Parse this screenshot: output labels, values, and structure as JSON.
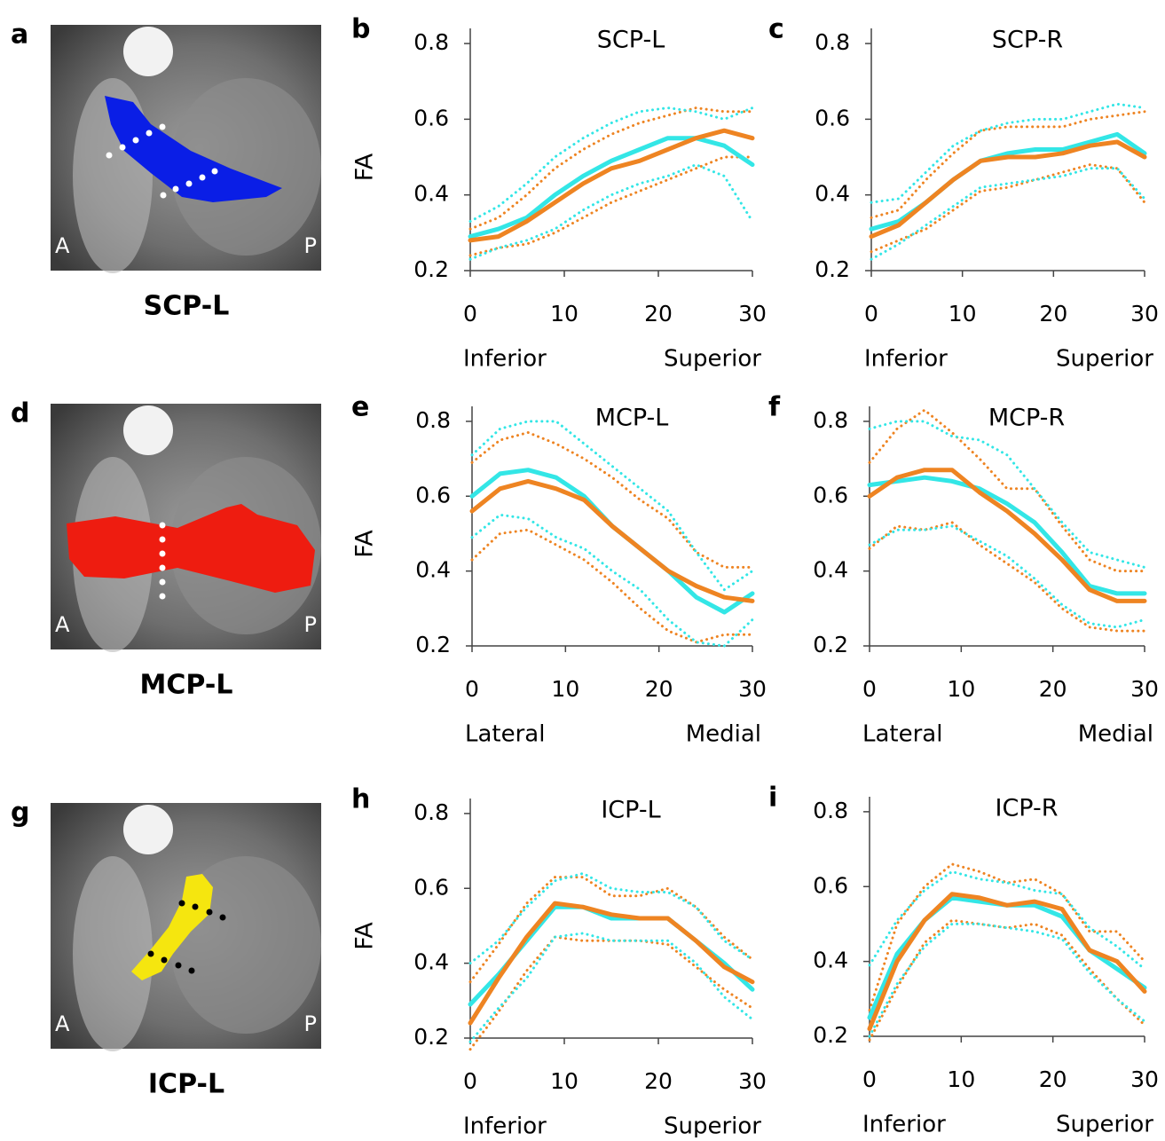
{
  "chart_data": [
    {
      "type": "line",
      "panel_label": "b",
      "title": "SCP-L",
      "ylabel": "FA",
      "x_start_label": "Inferior",
      "x_end_label": "Superior",
      "x": [
        0,
        3,
        6,
        9,
        12,
        15,
        18,
        21,
        24,
        27,
        30
      ],
      "xlim": [
        0,
        30
      ],
      "xticks": [
        0,
        10,
        20,
        30
      ],
      "ylim": [
        0.2,
        0.84
      ],
      "yticks": [
        0.2,
        0.4,
        0.6,
        0.8
      ],
      "series": [
        {
          "color": "#ee8422",
          "style": "dotted",
          "values": [
            0.31,
            0.34,
            0.4,
            0.47,
            0.52,
            0.56,
            0.59,
            0.61,
            0.63,
            0.62,
            0.62
          ]
        },
        {
          "color": "#ee8422",
          "style": "dotted",
          "values": [
            0.24,
            0.26,
            0.27,
            0.3,
            0.34,
            0.38,
            0.41,
            0.44,
            0.47,
            0.5,
            0.5
          ]
        },
        {
          "color": "#33e6e6",
          "style": "dotted",
          "values": [
            0.33,
            0.37,
            0.43,
            0.5,
            0.55,
            0.59,
            0.62,
            0.63,
            0.62,
            0.6,
            0.63
          ]
        },
        {
          "color": "#33e6e6",
          "style": "dotted",
          "values": [
            0.23,
            0.26,
            0.28,
            0.31,
            0.36,
            0.4,
            0.43,
            0.45,
            0.48,
            0.45,
            0.33
          ]
        },
        {
          "color": "#33e6e6",
          "style": "solid",
          "values": [
            0.29,
            0.31,
            0.34,
            0.4,
            0.45,
            0.49,
            0.52,
            0.55,
            0.55,
            0.53,
            0.48
          ]
        },
        {
          "color": "#ee8422",
          "style": "solid",
          "values": [
            0.28,
            0.29,
            0.33,
            0.38,
            0.43,
            0.47,
            0.49,
            0.52,
            0.55,
            0.57,
            0.55
          ]
        }
      ]
    },
    {
      "type": "line",
      "panel_label": "c",
      "title": "SCP-R",
      "x_start_label": "Inferior",
      "x_end_label": "Superior",
      "x": [
        0,
        3,
        6,
        9,
        12,
        15,
        18,
        21,
        24,
        27,
        30
      ],
      "xlim": [
        0,
        30
      ],
      "xticks": [
        0,
        10,
        20,
        30
      ],
      "ylim": [
        0.2,
        0.84
      ],
      "yticks": [
        0.2,
        0.4,
        0.6,
        0.8
      ],
      "series": [
        {
          "color": "#ee8422",
          "style": "dotted",
          "values": [
            0.34,
            0.36,
            0.44,
            0.51,
            0.57,
            0.58,
            0.58,
            0.58,
            0.6,
            0.61,
            0.62
          ]
        },
        {
          "color": "#ee8422",
          "style": "dotted",
          "values": [
            0.25,
            0.28,
            0.31,
            0.36,
            0.41,
            0.42,
            0.44,
            0.46,
            0.48,
            0.47,
            0.38
          ]
        },
        {
          "color": "#33e6e6",
          "style": "dotted",
          "values": [
            0.38,
            0.39,
            0.46,
            0.53,
            0.57,
            0.59,
            0.6,
            0.6,
            0.62,
            0.64,
            0.63
          ]
        },
        {
          "color": "#33e6e6",
          "style": "dotted",
          "values": [
            0.23,
            0.27,
            0.32,
            0.37,
            0.42,
            0.43,
            0.44,
            0.45,
            0.47,
            0.47,
            0.39
          ]
        },
        {
          "color": "#33e6e6",
          "style": "solid",
          "values": [
            0.31,
            0.33,
            0.38,
            0.44,
            0.49,
            0.51,
            0.52,
            0.52,
            0.54,
            0.56,
            0.51
          ]
        },
        {
          "color": "#ee8422",
          "style": "solid",
          "values": [
            0.29,
            0.32,
            0.38,
            0.44,
            0.49,
            0.5,
            0.5,
            0.51,
            0.53,
            0.54,
            0.5
          ]
        }
      ]
    },
    {
      "type": "line",
      "panel_label": "e",
      "title": "MCP-L",
      "ylabel": "FA",
      "x_start_label": "Lateral",
      "x_end_label": "Medial",
      "x": [
        0,
        3,
        6,
        9,
        12,
        15,
        18,
        21,
        24,
        27,
        30
      ],
      "xlim": [
        0,
        30
      ],
      "xticks": [
        0,
        10,
        20,
        30
      ],
      "ylim": [
        0.2,
        0.84
      ],
      "yticks": [
        0.2,
        0.4,
        0.6,
        0.8
      ],
      "series": [
        {
          "color": "#ee8422",
          "style": "dotted",
          "values": [
            0.69,
            0.75,
            0.77,
            0.74,
            0.7,
            0.65,
            0.59,
            0.54,
            0.45,
            0.41,
            0.41
          ]
        },
        {
          "color": "#ee8422",
          "style": "dotted",
          "values": [
            0.43,
            0.5,
            0.51,
            0.47,
            0.43,
            0.37,
            0.3,
            0.24,
            0.21,
            0.23,
            0.23
          ]
        },
        {
          "color": "#33e6e6",
          "style": "dotted",
          "values": [
            0.71,
            0.78,
            0.8,
            0.8,
            0.74,
            0.68,
            0.62,
            0.56,
            0.45,
            0.35,
            0.4
          ]
        },
        {
          "color": "#33e6e6",
          "style": "dotted",
          "values": [
            0.49,
            0.55,
            0.54,
            0.49,
            0.46,
            0.4,
            0.35,
            0.27,
            0.21,
            0.2,
            0.27
          ]
        },
        {
          "color": "#33e6e6",
          "style": "solid",
          "values": [
            0.6,
            0.66,
            0.67,
            0.65,
            0.6,
            0.52,
            0.46,
            0.4,
            0.33,
            0.29,
            0.34
          ]
        },
        {
          "color": "#ee8422",
          "style": "solid",
          "values": [
            0.56,
            0.62,
            0.64,
            0.62,
            0.59,
            0.52,
            0.46,
            0.4,
            0.36,
            0.33,
            0.32
          ]
        }
      ]
    },
    {
      "type": "line",
      "panel_label": "f",
      "title": "MCP-R",
      "x_start_label": "Lateral",
      "x_end_label": "Medial",
      "x": [
        0,
        3,
        6,
        9,
        12,
        15,
        18,
        21,
        24,
        27,
        30
      ],
      "xlim": [
        0,
        30
      ],
      "xticks": [
        0,
        10,
        20,
        30
      ],
      "ylim": [
        0.2,
        0.84
      ],
      "yticks": [
        0.2,
        0.4,
        0.6,
        0.8
      ],
      "series": [
        {
          "color": "#ee8422",
          "style": "dotted",
          "values": [
            0.69,
            0.78,
            0.83,
            0.77,
            0.7,
            0.62,
            0.62,
            0.52,
            0.43,
            0.4,
            0.4
          ]
        },
        {
          "color": "#ee8422",
          "style": "dotted",
          "values": [
            0.46,
            0.52,
            0.51,
            0.53,
            0.47,
            0.42,
            0.37,
            0.3,
            0.25,
            0.24,
            0.24
          ]
        },
        {
          "color": "#33e6e6",
          "style": "dotted",
          "values": [
            0.78,
            0.8,
            0.8,
            0.76,
            0.75,
            0.71,
            0.62,
            0.53,
            0.45,
            0.43,
            0.41
          ]
        },
        {
          "color": "#33e6e6",
          "style": "dotted",
          "values": [
            0.47,
            0.51,
            0.51,
            0.52,
            0.48,
            0.44,
            0.38,
            0.31,
            0.26,
            0.25,
            0.27
          ]
        },
        {
          "color": "#33e6e6",
          "style": "solid",
          "values": [
            0.63,
            0.64,
            0.65,
            0.64,
            0.62,
            0.58,
            0.53,
            0.45,
            0.36,
            0.34,
            0.34
          ]
        },
        {
          "color": "#ee8422",
          "style": "solid",
          "values": [
            0.6,
            0.65,
            0.67,
            0.67,
            0.61,
            0.56,
            0.5,
            0.43,
            0.35,
            0.32,
            0.32
          ]
        }
      ]
    },
    {
      "type": "line",
      "panel_label": "h",
      "title": "ICP-L",
      "ylabel": "FA",
      "x_start_label": "Inferior",
      "x_end_label": "Superior",
      "x": [
        0,
        3,
        6,
        9,
        12,
        15,
        18,
        21,
        24,
        27,
        30
      ],
      "xlim": [
        0,
        30
      ],
      "xticks": [
        0,
        10,
        20,
        30
      ],
      "ylim": [
        0.2,
        0.84
      ],
      "yticks": [
        0.2,
        0.4,
        0.6,
        0.8
      ],
      "series": [
        {
          "color": "#ee8422",
          "style": "dotted",
          "values": [
            0.35,
            0.45,
            0.56,
            0.63,
            0.63,
            0.58,
            0.58,
            0.6,
            0.55,
            0.47,
            0.41
          ]
        },
        {
          "color": "#ee8422",
          "style": "dotted",
          "values": [
            0.17,
            0.27,
            0.38,
            0.47,
            0.46,
            0.46,
            0.46,
            0.45,
            0.39,
            0.33,
            0.28
          ]
        },
        {
          "color": "#33e6e6",
          "style": "dotted",
          "values": [
            0.4,
            0.46,
            0.55,
            0.62,
            0.64,
            0.6,
            0.59,
            0.59,
            0.55,
            0.46,
            0.41
          ]
        },
        {
          "color": "#33e6e6",
          "style": "dotted",
          "values": [
            0.19,
            0.28,
            0.36,
            0.47,
            0.48,
            0.46,
            0.46,
            0.46,
            0.4,
            0.31,
            0.25
          ]
        },
        {
          "color": "#33e6e6",
          "style": "solid",
          "values": [
            0.29,
            0.37,
            0.46,
            0.55,
            0.55,
            0.52,
            0.52,
            0.52,
            0.46,
            0.4,
            0.33
          ]
        },
        {
          "color": "#ee8422",
          "style": "solid",
          "values": [
            0.24,
            0.36,
            0.47,
            0.56,
            0.55,
            0.53,
            0.52,
            0.52,
            0.46,
            0.39,
            0.35
          ]
        }
      ]
    },
    {
      "type": "line",
      "panel_label": "i",
      "title": "ICP-R",
      "x_start_label": "Inferior",
      "x_end_label": "Superior",
      "x": [
        0,
        3,
        6,
        9,
        12,
        15,
        18,
        21,
        24,
        27,
        30
      ],
      "xlim": [
        0,
        30
      ],
      "xticks": [
        0,
        10,
        20,
        30
      ],
      "ylim": [
        0.2,
        0.84
      ],
      "yticks": [
        0.2,
        0.4,
        0.6,
        0.8
      ],
      "series": [
        {
          "color": "#ee8422",
          "style": "dotted",
          "values": [
            0.27,
            0.5,
            0.6,
            0.66,
            0.64,
            0.61,
            0.62,
            0.58,
            0.48,
            0.48,
            0.4
          ]
        },
        {
          "color": "#ee8422",
          "style": "dotted",
          "values": [
            0.19,
            0.33,
            0.45,
            0.51,
            0.5,
            0.49,
            0.5,
            0.47,
            0.38,
            0.3,
            0.23
          ]
        },
        {
          "color": "#33e6e6",
          "style": "dotted",
          "values": [
            0.39,
            0.51,
            0.59,
            0.64,
            0.62,
            0.61,
            0.59,
            0.58,
            0.49,
            0.44,
            0.38
          ]
        },
        {
          "color": "#33e6e6",
          "style": "dotted",
          "values": [
            0.2,
            0.34,
            0.44,
            0.5,
            0.5,
            0.49,
            0.48,
            0.46,
            0.37,
            0.3,
            0.24
          ]
        },
        {
          "color": "#33e6e6",
          "style": "solid",
          "values": [
            0.25,
            0.42,
            0.51,
            0.57,
            0.56,
            0.55,
            0.55,
            0.52,
            0.43,
            0.38,
            0.33
          ]
        },
        {
          "color": "#ee8422",
          "style": "solid",
          "values": [
            0.22,
            0.4,
            0.51,
            0.58,
            0.57,
            0.55,
            0.56,
            0.54,
            0.43,
            0.4,
            0.32
          ]
        }
      ]
    }
  ],
  "image_panels": [
    {
      "panel_label": "a",
      "anterior": "A",
      "posterior": "P",
      "caption": "SCP-L",
      "tract_color": "#0a1ee6",
      "dot_color": "#ffffff"
    },
    {
      "panel_label": "d",
      "anterior": "A",
      "posterior": "P",
      "caption": "MCP-L",
      "tract_color": "#ee1c10",
      "dot_color": "#ffffff"
    },
    {
      "panel_label": "g",
      "anterior": "A",
      "posterior": "P",
      "caption": "ICP-L",
      "tract_color": "#f5e60f",
      "dot_color": "#000000"
    }
  ]
}
